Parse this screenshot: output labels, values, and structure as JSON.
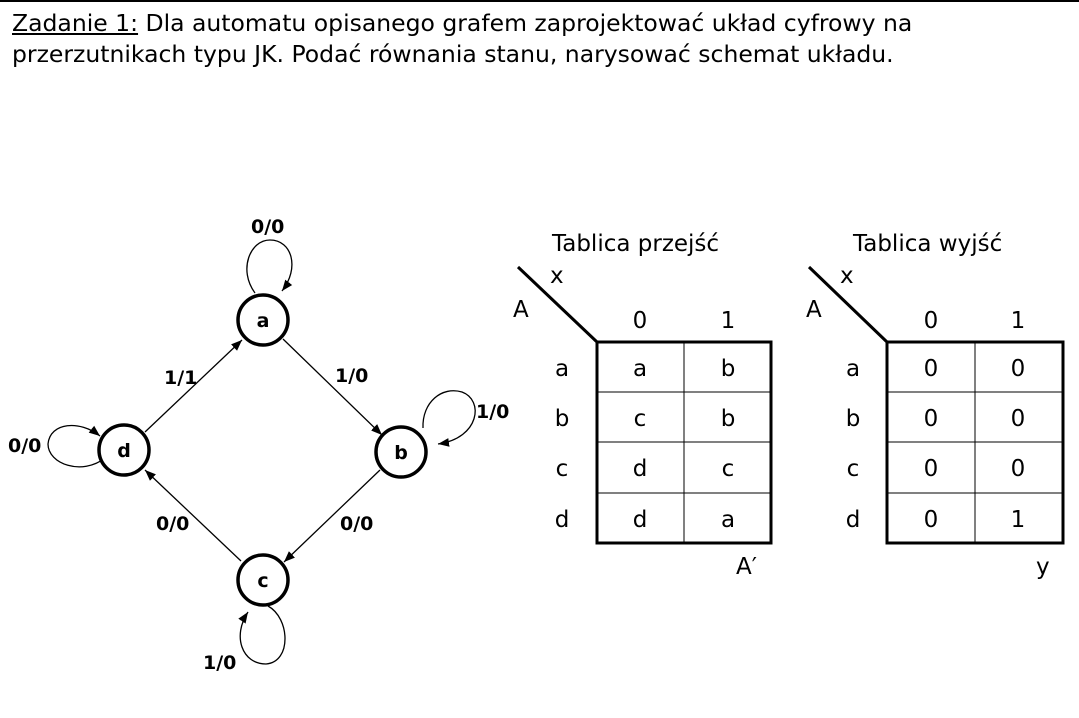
{
  "task": {
    "label": "Zadanie 1:",
    "text": " Dla automatu opisanego grafem zaprojektować układ cyfrowy na przerzutnikach typu JK. Podać równania stanu, narysować schemat układu."
  },
  "graph": {
    "nodes": [
      {
        "id": "a",
        "label": "a"
      },
      {
        "id": "b",
        "label": "b"
      },
      {
        "id": "c",
        "label": "c"
      },
      {
        "id": "d",
        "label": "d"
      }
    ],
    "edges": [
      {
        "from": "a",
        "to": "a",
        "label": "0/0"
      },
      {
        "from": "a",
        "to": "b",
        "label": "1/0"
      },
      {
        "from": "b",
        "to": "b",
        "label": "1/0"
      },
      {
        "from": "b",
        "to": "c",
        "label": "0/0"
      },
      {
        "from": "c",
        "to": "c",
        "label": "1/0"
      },
      {
        "from": "c",
        "to": "d",
        "label": "0/0"
      },
      {
        "from": "d",
        "to": "d",
        "label": "0/0"
      },
      {
        "from": "d",
        "to": "a",
        "label": "1/1"
      }
    ]
  },
  "transition_table": {
    "title": "Tablica przejść",
    "row_var": "A",
    "col_var": "x",
    "columns": [
      "0",
      "1"
    ],
    "rows": [
      "a",
      "b",
      "c",
      "d"
    ],
    "cells": [
      [
        "a",
        "b"
      ],
      [
        "c",
        "b"
      ],
      [
        "d",
        "c"
      ],
      [
        "d",
        "a"
      ]
    ],
    "result_label": "A′"
  },
  "output_table": {
    "title": "Tablica wyjść",
    "row_var": "A",
    "col_var": "x",
    "columns": [
      "0",
      "1"
    ],
    "rows": [
      "a",
      "b",
      "c",
      "d"
    ],
    "cells": [
      [
        "0",
        "0"
      ],
      [
        "0",
        "0"
      ],
      [
        "0",
        "0"
      ],
      [
        "0",
        "1"
      ]
    ],
    "result_label": "y"
  }
}
